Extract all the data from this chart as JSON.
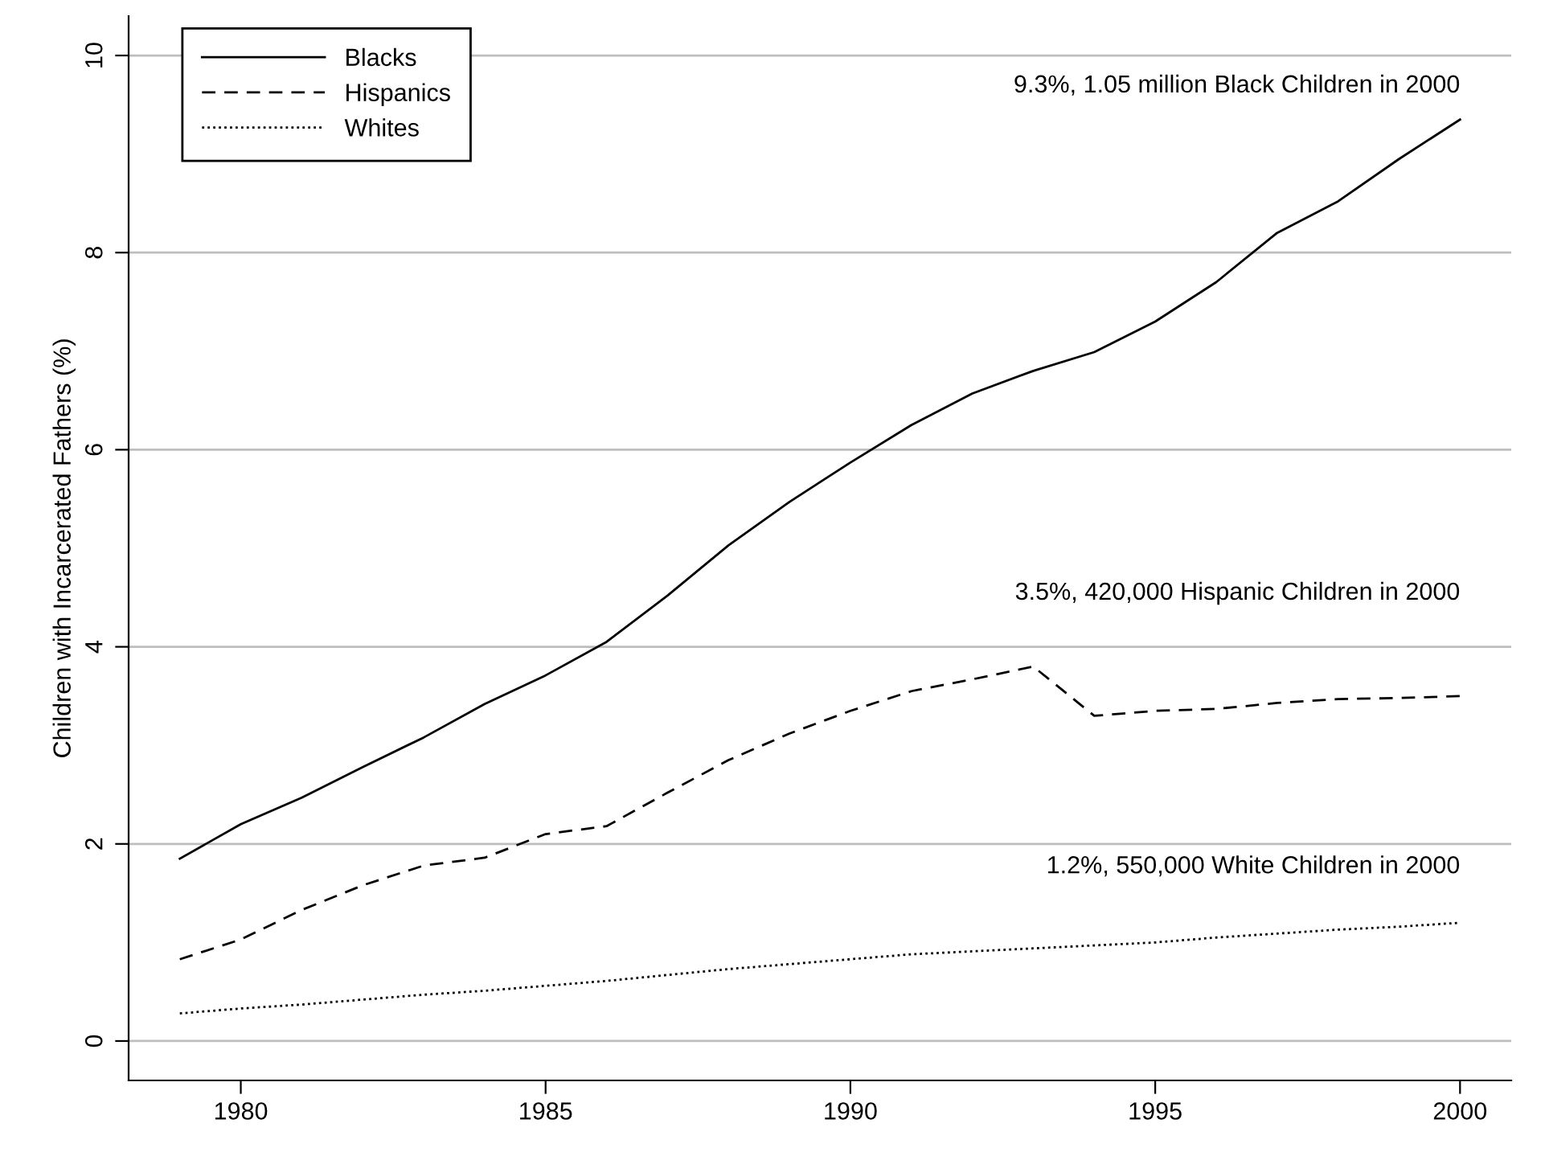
{
  "chart_data": {
    "type": "line",
    "ylabel": "Children with Incarcerated Fathers (%)",
    "x": [
      1979,
      1980,
      1981,
      1982,
      1983,
      1984,
      1985,
      1986,
      1987,
      1988,
      1989,
      1990,
      1991,
      1992,
      1993,
      1994,
      1995,
      1996,
      1997,
      1998,
      1999,
      2000
    ],
    "series": [
      {
        "name": "Blacks",
        "color": "#000000",
        "line_style": "solid",
        "values": [
          1.85,
          2.2,
          2.47,
          2.78,
          3.08,
          3.42,
          3.71,
          4.05,
          4.52,
          5.03,
          5.47,
          5.87,
          6.25,
          6.57,
          6.8,
          6.99,
          7.3,
          7.7,
          8.2,
          8.52,
          8.95,
          9.35
        ]
      },
      {
        "name": "Hispanics",
        "color": "#000000",
        "line_style": "dashed",
        "values": [
          0.83,
          1.03,
          1.33,
          1.58,
          1.78,
          1.86,
          2.1,
          2.18,
          2.52,
          2.85,
          3.12,
          3.35,
          3.55,
          3.67,
          3.8,
          3.3,
          3.35,
          3.37,
          3.43,
          3.47,
          3.48,
          3.5
        ]
      },
      {
        "name": "Whites",
        "color": "#000000",
        "line_style": "dotted",
        "values": [
          0.28,
          0.33,
          0.37,
          0.42,
          0.47,
          0.51,
          0.56,
          0.61,
          0.67,
          0.73,
          0.78,
          0.83,
          0.88,
          0.91,
          0.94,
          0.97,
          1.0,
          1.05,
          1.09,
          1.13,
          1.16,
          1.2
        ]
      }
    ],
    "annotations": [
      "9.3%, 1.05 million Black Children in 2000",
      "3.5%, 420,000 Hispanic Children in 2000",
      "1.2%, 550,000 White Children in 2000"
    ],
    "xlim": [
      1978.16,
      2000.84
    ],
    "ylim": [
      -0.4,
      10.4
    ],
    "xticks": [
      1980,
      1985,
      1990,
      1995,
      2000
    ],
    "yticks": [
      0,
      2,
      4,
      6,
      8,
      10
    ],
    "grid": "y",
    "legend": "top left",
    "marker": "none"
  }
}
